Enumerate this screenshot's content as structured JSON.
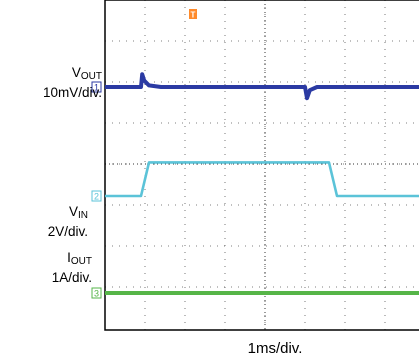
{
  "chart_data": {
    "type": "line",
    "title": "",
    "xlabel": "1ms/div.",
    "ylabel": "",
    "grid": true,
    "trigger_marker": "T",
    "x_divisions": 10,
    "y_divisions": 8,
    "series": [
      {
        "name_main": "V",
        "name_sub": "OUT",
        "scale": "10mV/div.",
        "marker": "1",
        "color": "#2b3aa3",
        "x": [
          0,
          0.9,
          0.93,
          0.98,
          1.1,
          1.4,
          2.5,
          3.5,
          5.0,
          5.05,
          5.12,
          5.3,
          6.0,
          7.0,
          8.0,
          9.0
        ],
        "y": [
          0,
          0,
          0.4,
          0.2,
          0.05,
          0,
          0,
          0,
          0,
          -0.35,
          -0.1,
          0,
          0,
          0,
          0,
          0
        ]
      },
      {
        "name_main": "V",
        "name_sub": "IN",
        "scale": "2V/div.",
        "marker": "2",
        "color": "#5bc3d8",
        "x": [
          0,
          0.9,
          1.1,
          5.6,
          5.8,
          9.0
        ],
        "y": [
          0,
          0,
          1.05,
          1.05,
          0,
          0
        ]
      },
      {
        "name_main": "I",
        "name_sub": "OUT",
        "scale": "1A/div.",
        "marker": "3",
        "color": "#56b548",
        "x": [
          0,
          9.0
        ],
        "y": [
          0,
          0
        ]
      }
    ]
  }
}
